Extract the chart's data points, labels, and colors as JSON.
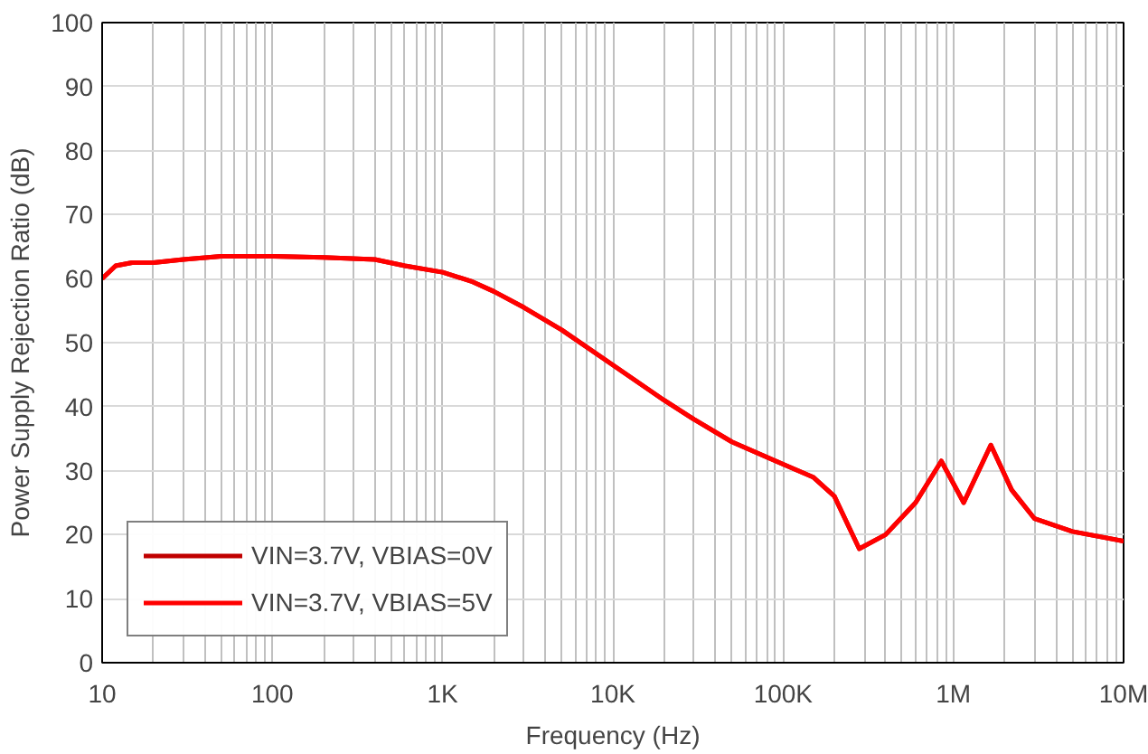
{
  "chart_data": {
    "type": "line",
    "xlabel": "Frequency (Hz)",
    "ylabel": "Power Supply Rejection Ratio (dB)",
    "log": "x",
    "xlim": [
      10,
      10000000
    ],
    "ylim": [
      0,
      100
    ],
    "xticks": [
      10,
      100,
      {
        "value": 1000,
        "label": "1K"
      },
      {
        "value": 10000,
        "label": "10K"
      },
      {
        "value": 100000,
        "label": "100K"
      },
      {
        "value": 1000000,
        "label": "1M"
      },
      {
        "value": 10000000,
        "label": "10M"
      }
    ],
    "yticks": [
      0,
      10,
      20,
      30,
      40,
      50,
      60,
      70,
      80,
      90,
      100
    ],
    "x": [
      10,
      12,
      15,
      20,
      30,
      50,
      100,
      200,
      400,
      600,
      1000,
      1500,
      2000,
      3000,
      5000,
      10000,
      20000,
      30000,
      50000,
      100000,
      150000,
      200000,
      280000,
      400000,
      600000,
      850000,
      1150000,
      1660000,
      2200000,
      3000000,
      5000000,
      10000000
    ],
    "series": [
      {
        "name": "VIN=3.7V, VBIAS=0V",
        "color": "#c00000",
        "values": [
          60,
          62,
          62.5,
          62.5,
          63,
          63.5,
          63.5,
          63.3,
          63,
          62,
          61,
          59.5,
          58,
          55.5,
          52,
          46.5,
          41,
          38,
          34.5,
          31,
          29,
          26,
          17.8,
          20,
          25,
          31.5,
          25,
          34,
          27,
          22.5,
          20.5,
          19
        ]
      },
      {
        "name": "VIN=3.7V, VBIAS=5V",
        "color": "#ff0000",
        "values": [
          60,
          62,
          62.5,
          62.5,
          63,
          63.5,
          63.5,
          63.3,
          63,
          62,
          61,
          59.5,
          58,
          55.5,
          52,
          46.5,
          41,
          38,
          34.5,
          31,
          29,
          26,
          17.8,
          20,
          25,
          31.5,
          25,
          34,
          27,
          22.5,
          20.5,
          19
        ]
      }
    ],
    "grid": true,
    "legend": "bottom left",
    "marker": "none",
    "line_style": "solid"
  }
}
